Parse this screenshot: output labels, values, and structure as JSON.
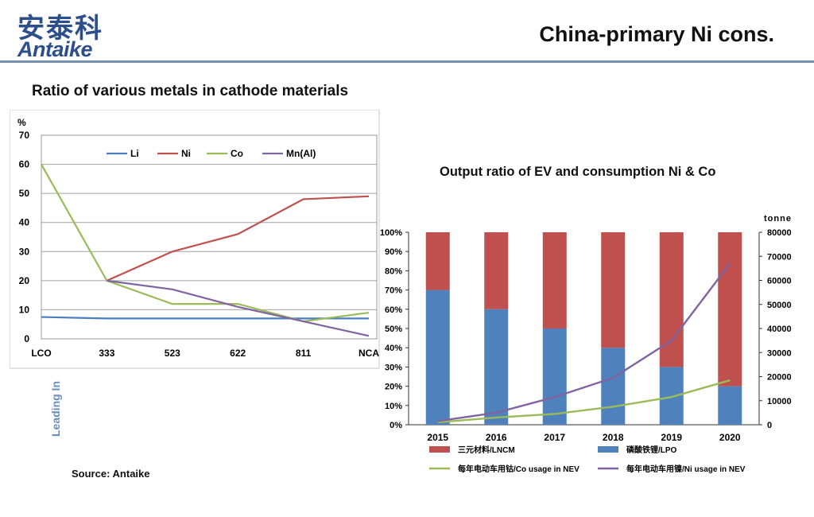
{
  "header": {
    "logo_cn": "安泰科",
    "logo_en": "Antaike",
    "title": "China-primary Ni cons."
  },
  "left_heading": "Ratio of various metals in cathode materials",
  "right_heading": "Output  ratio of EV and consumption Ni & Co",
  "source": "Source: Antaike",
  "side_label": "Leading In",
  "colors": {
    "header_rule": "#7790b3",
    "li": "#4a7ec0",
    "ni": "#c0504d",
    "co": "#9bbb59",
    "mn": "#8064a2",
    "bar_blue": "#4f81bd",
    "bar_red": "#c0504d"
  },
  "chart_data": [
    {
      "type": "line",
      "ylabel": "%",
      "ylim": [
        0,
        70
      ],
      "yticks": [
        "0",
        "10",
        "20",
        "30",
        "40",
        "50",
        "60",
        "70"
      ],
      "categories": [
        "LCO",
        "333",
        "523",
        "622",
        "811",
        "NCA"
      ],
      "legend_position": "top",
      "grid": true,
      "series": [
        {
          "name": "Li",
          "values": [
            7.5,
            7,
            7,
            7,
            7,
            7
          ]
        },
        {
          "name": "Ni",
          "values": [
            null,
            20,
            30,
            36,
            48,
            49
          ]
        },
        {
          "name": "Co",
          "values": [
            60,
            20,
            12,
            12,
            6,
            9
          ]
        },
        {
          "name": "Mn(Al)",
          "values": [
            null,
            20,
            17,
            11,
            6,
            1
          ]
        }
      ]
    },
    {
      "type": "bar",
      "stacked": true,
      "categories": [
        "2015",
        "2016",
        "2017",
        "2018",
        "2019",
        "2020"
      ],
      "ylim_left": [
        0,
        100
      ],
      "yticks_left": [
        "0%",
        "10%",
        "20%",
        "30%",
        "40%",
        "50%",
        "60%",
        "70%",
        "80%",
        "90%",
        "100%"
      ],
      "ylabel_right": "tonne",
      "ylim_right": [
        0,
        80000
      ],
      "yticks_right": [
        "0",
        "10000",
        "20000",
        "30000",
        "40000",
        "50000",
        "60000",
        "70000",
        "80000"
      ],
      "legend_position": "bottom",
      "grid": false,
      "series": [
        {
          "name": "磷酸铁锂/LPO",
          "kind": "bar",
          "values": [
            70,
            60,
            50,
            40,
            30,
            20
          ]
        },
        {
          "name": "三元材料/LNCM",
          "kind": "bar",
          "values": [
            30,
            40,
            50,
            60,
            70,
            80
          ]
        },
        {
          "name": "每年电动车用钴/Co usage in NEV",
          "kind": "line",
          "axis": "right",
          "values": [
            1000,
            3000,
            4500,
            7500,
            11500,
            18500
          ]
        },
        {
          "name": "每年电动车用镍/Ni usage in NEV",
          "kind": "line",
          "axis": "right",
          "values": [
            1500,
            5000,
            11500,
            19500,
            35000,
            67000
          ]
        }
      ]
    }
  ]
}
